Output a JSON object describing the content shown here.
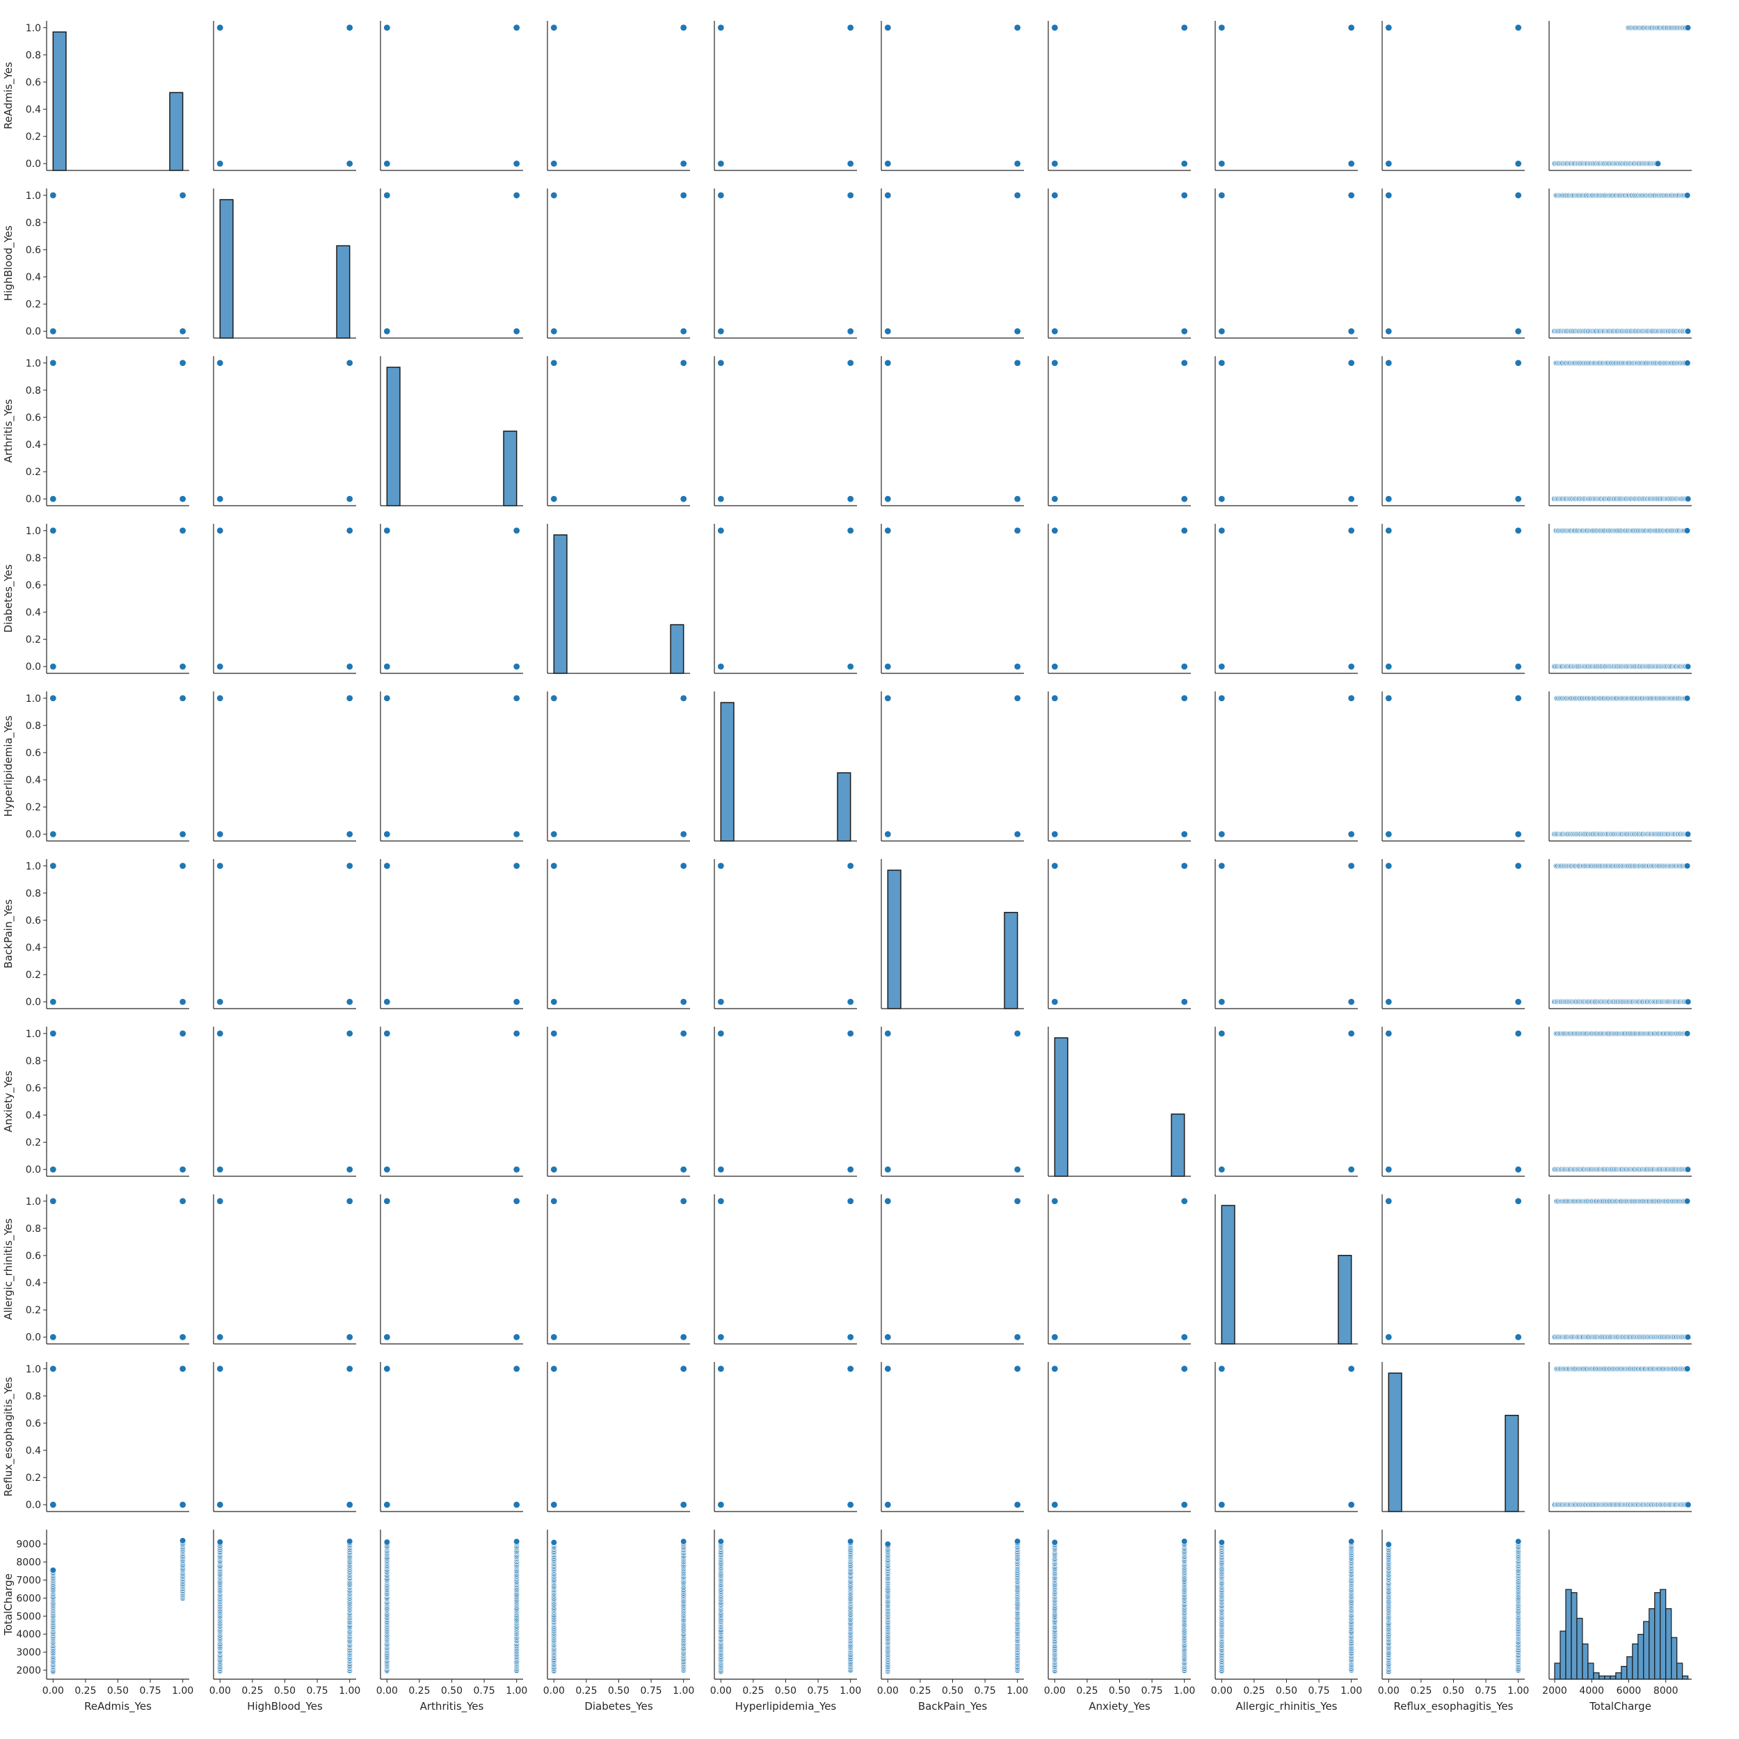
{
  "chart_data": {
    "type": "pairplot",
    "variables": [
      "ReAdmis_Yes",
      "HighBlood_Yes",
      "Arthritis_Yes",
      "Diabetes_Yes",
      "Hyperlipidemia_Yes",
      "BackPain_Yes",
      "Anxiety_Yes",
      "Allergic_rhinitis_Yes",
      "Reflux_esophagitis_Yes",
      "TotalCharge"
    ],
    "colors": {
      "marker": "#1f77b4",
      "hist_fill": "#5b9ac9",
      "hist_edge": "#1a1a1a",
      "axis": "#262626"
    },
    "binary_axis": {
      "xlim": [
        -0.05,
        1.05
      ],
      "ylim": [
        -0.05,
        1.05
      ],
      "xticks": [
        0.0,
        0.25,
        0.5,
        0.75,
        1.0
      ],
      "xtick_labels": [
        "0.00",
        "0.25",
        "0.50",
        "0.75",
        "1.00"
      ],
      "yticks": [
        0.0,
        0.2,
        0.4,
        0.6,
        0.8,
        1.0
      ],
      "ytick_labels": [
        "0.0",
        "0.2",
        "0.4",
        "0.6",
        "0.8",
        "1.0"
      ]
    },
    "charge_axis": {
      "xlim": [
        1700,
        9400
      ],
      "ylim": [
        1500,
        9800
      ],
      "ticks": [
        2000,
        3000,
        4000,
        5000,
        6000,
        7000,
        8000,
        9000
      ],
      "xtick_values": [
        2000,
        4000,
        6000,
        8000
      ],
      "xtick_labels": [
        "2000",
        "4000",
        "6000",
        "8000"
      ],
      "ytick_labels": [
        "2000",
        "3000",
        "4000",
        "5000",
        "6000",
        "7000",
        "8000",
        "9000"
      ]
    },
    "binary_histograms": [
      {
        "variable": "ReAdmis_Yes",
        "share_0": 0.64,
        "share_1": 0.36
      },
      {
        "variable": "HighBlood_Yes",
        "share_0": 0.6,
        "share_1": 0.4
      },
      {
        "variable": "Arthritis_Yes",
        "share_0": 0.65,
        "share_1": 0.35
      },
      {
        "variable": "Diabetes_Yes",
        "share_0": 0.74,
        "share_1": 0.26
      },
      {
        "variable": "Hyperlipidemia_Yes",
        "share_0": 0.67,
        "share_1": 0.33
      },
      {
        "variable": "BackPain_Yes",
        "share_0": 0.59,
        "share_1": 0.41
      },
      {
        "variable": "Anxiety_Yes",
        "share_0": 0.69,
        "share_1": 0.31
      },
      {
        "variable": "Allergic_rhinitis_Yes",
        "share_0": 0.61,
        "share_1": 0.39
      },
      {
        "variable": "Reflux_esophagitis_Yes",
        "share_0": 0.59,
        "share_1": 0.41
      }
    ],
    "totalcharge_histogram": {
      "bins": [
        2000,
        2300,
        2600,
        2900,
        3200,
        3500,
        3800,
        4100,
        4400,
        4700,
        5000,
        5300,
        5600,
        5900,
        6200,
        6500,
        6800,
        7100,
        7400,
        7700,
        8000,
        8300,
        8600,
        8900,
        9200
      ],
      "counts": [
        0.05,
        0.15,
        0.28,
        0.27,
        0.19,
        0.11,
        0.05,
        0.02,
        0.01,
        0.01,
        0.01,
        0.02,
        0.04,
        0.07,
        0.11,
        0.14,
        0.18,
        0.22,
        0.27,
        0.28,
        0.22,
        0.13,
        0.05,
        0.01
      ]
    },
    "totalcharge_strips": {
      "ReAdmis_Yes": {
        "0": [
          1950,
          7600
        ],
        "1": [
          6000,
          9200
        ]
      },
      "HighBlood_Yes": {
        "0": [
          1950,
          9100
        ],
        "1": [
          2000,
          9200
        ]
      },
      "Arthritis_Yes": {
        "0": [
          1950,
          9100
        ],
        "1": [
          2000,
          9200
        ]
      },
      "Diabetes_Yes": {
        "0": [
          1950,
          9100
        ],
        "1": [
          2000,
          9200
        ]
      },
      "Hyperlipidemia_Yes": {
        "0": [
          1950,
          9200
        ],
        "1": [
          2000,
          9200
        ]
      },
      "BackPain_Yes": {
        "0": [
          1950,
          9000
        ],
        "1": [
          2000,
          9200
        ]
      },
      "Anxiety_Yes": {
        "0": [
          1950,
          9100
        ],
        "1": [
          2000,
          9200
        ]
      },
      "Allergic_rhinitis_Yes": {
        "0": [
          1950,
          9100
        ],
        "1": [
          2000,
          9200
        ]
      },
      "Reflux_esophagitis_Yes": {
        "0": [
          1950,
          9000
        ],
        "1": [
          2000,
          9200
        ]
      }
    },
    "binary_vs_totalcharge_ranges": {
      "ReAdmis_Yes": {
        "1": [
          6000,
          9200
        ],
        "0": [
          2000,
          7600
        ]
      },
      "default": {
        "1": [
          2100,
          9200
        ],
        "0": [
          2000,
          9200
        ]
      }
    }
  }
}
